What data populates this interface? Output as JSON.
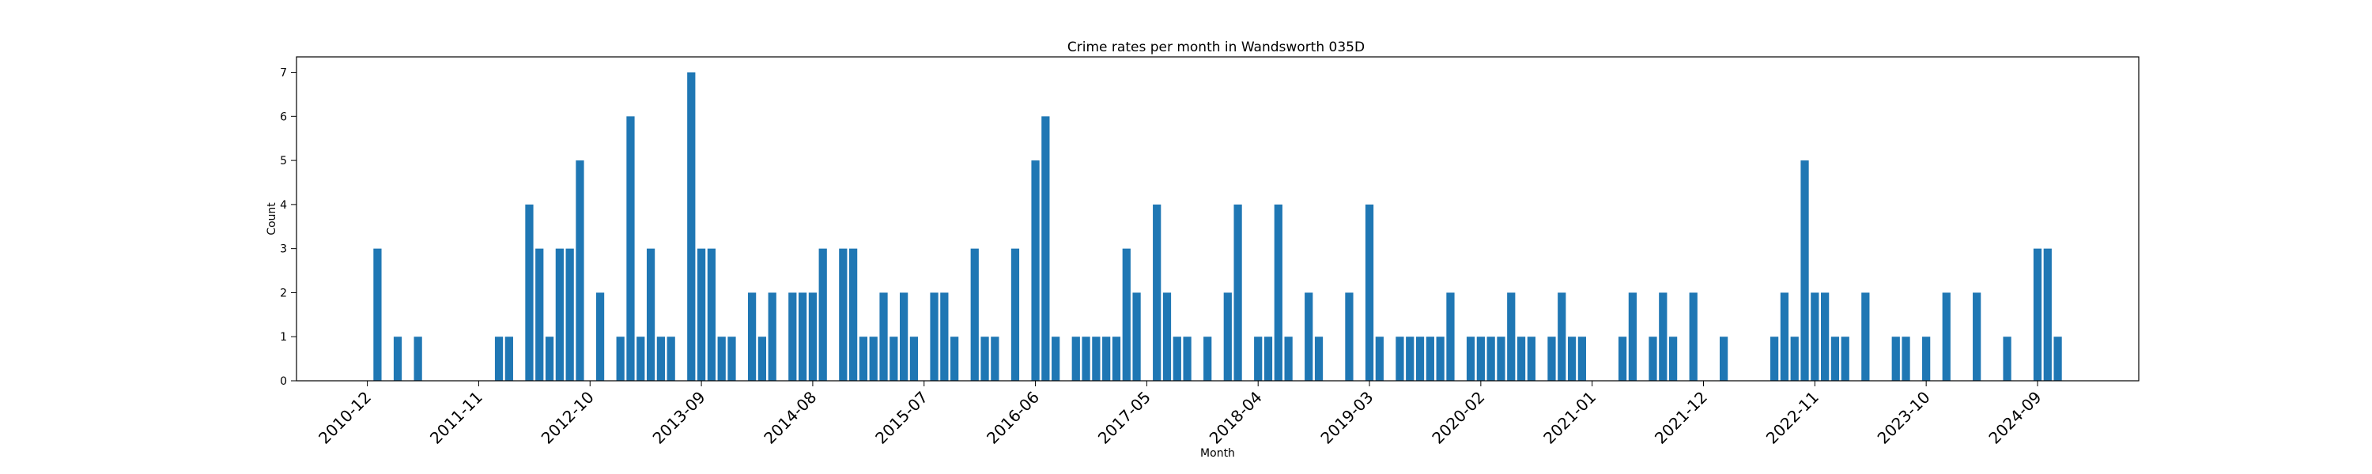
{
  "chart_data": {
    "type": "bar",
    "title": "Crime rates per month in Wandsworth 035D",
    "xlabel": "Month",
    "ylabel": "Count",
    "ylim": [
      0,
      7.35
    ],
    "yticks": [
      "0",
      "1",
      "2",
      "3",
      "4",
      "5",
      "6",
      "7"
    ],
    "xticks": [
      "2010-12",
      "2011-11",
      "2012-10",
      "2013-09",
      "2014-08",
      "2015-07",
      "2016-06",
      "2017-05",
      "2018-04",
      "2019-03",
      "2020-02",
      "2021-01",
      "2021-12",
      "2022-11",
      "2023-10",
      "2024-09"
    ],
    "bar_color": "#1f77b4",
    "grid": false,
    "months": [
      "2011-01",
      "2011-03",
      "2011-05",
      "2012-01",
      "2012-02",
      "2012-04",
      "2012-05",
      "2012-06",
      "2012-07",
      "2012-08",
      "2012-09",
      "2012-11",
      "2013-01",
      "2013-02",
      "2013-03",
      "2013-04",
      "2013-05",
      "2013-06",
      "2013-08",
      "2013-09",
      "2013-10",
      "2013-11",
      "2013-12",
      "2014-02",
      "2014-03",
      "2014-04",
      "2014-06",
      "2014-07",
      "2014-08",
      "2014-09",
      "2014-11",
      "2014-12",
      "2015-01",
      "2015-02",
      "2015-03",
      "2015-04",
      "2015-05",
      "2015-06",
      "2015-08",
      "2015-09",
      "2015-10",
      "2015-12",
      "2016-01",
      "2016-02",
      "2016-04",
      "2016-06",
      "2016-07",
      "2016-08",
      "2016-10",
      "2016-11",
      "2016-12",
      "2017-01",
      "2017-02",
      "2017-03",
      "2017-04",
      "2017-06",
      "2017-07",
      "2017-08",
      "2017-09",
      "2017-11",
      "2018-01",
      "2018-02",
      "2018-04",
      "2018-05",
      "2018-06",
      "2018-07",
      "2018-09",
      "2018-10",
      "2019-01",
      "2019-03",
      "2019-04",
      "2019-06",
      "2019-07",
      "2019-08",
      "2019-09",
      "2019-10",
      "2019-11",
      "2020-01",
      "2020-02",
      "2020-03",
      "2020-04",
      "2020-05",
      "2020-06",
      "2020-07",
      "2020-09",
      "2020-10",
      "2020-11",
      "2020-12",
      "2021-04",
      "2021-05",
      "2021-07",
      "2021-08",
      "2021-09",
      "2021-11",
      "2022-02",
      "2022-07",
      "2022-08",
      "2022-09",
      "2022-10",
      "2022-11",
      "2022-12",
      "2023-01",
      "2023-02",
      "2023-04",
      "2023-07",
      "2023-08",
      "2023-10",
      "2023-12",
      "2024-03",
      "2024-06",
      "2024-09",
      "2024-10",
      "2024-11"
    ],
    "values": [
      3,
      1,
      1,
      1,
      1,
      4,
      3,
      1,
      3,
      3,
      5,
      2,
      1,
      6,
      1,
      3,
      1,
      1,
      7,
      3,
      3,
      1,
      1,
      2,
      1,
      2,
      2,
      2,
      2,
      3,
      3,
      3,
      1,
      1,
      2,
      1,
      2,
      1,
      2,
      2,
      1,
      3,
      1,
      1,
      3,
      5,
      6,
      1,
      1,
      1,
      1,
      1,
      1,
      3,
      2,
      4,
      2,
      1,
      1,
      1,
      2,
      4,
      1,
      1,
      4,
      1,
      2,
      1,
      2,
      4,
      1,
      1,
      1,
      1,
      1,
      1,
      2,
      1,
      1,
      1,
      1,
      2,
      1,
      1,
      1,
      2,
      1,
      1,
      1,
      2,
      1,
      2,
      1,
      2,
      1,
      1,
      2,
      1,
      5,
      2,
      2,
      1,
      1,
      2,
      1,
      1,
      1,
      2,
      2,
      1,
      3,
      3,
      1
    ]
  }
}
